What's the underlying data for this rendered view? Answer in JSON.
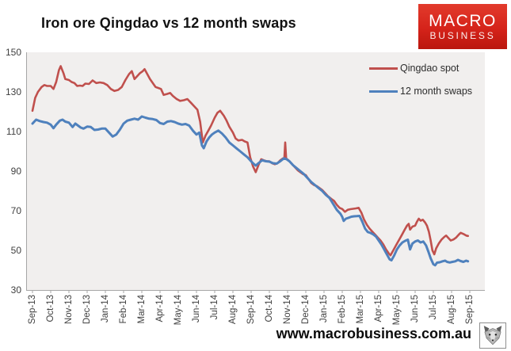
{
  "header": {
    "title": "Iron ore Qingdao vs 12 month swaps"
  },
  "logo": {
    "line1": "MACRO",
    "line2": "BUSINESS",
    "bg_color": "#d5231a",
    "text_color": "#ffffff"
  },
  "footer": {
    "url": "www.macrobusiness.com.au",
    "wolf_logo": "wolf-face-icon"
  },
  "chart_data": {
    "type": "line",
    "title": "Iron ore Qingdao vs 12 month swaps",
    "xlabel": "",
    "ylabel": "",
    "ylim": [
      30,
      150
    ],
    "y_ticks": [
      150,
      130,
      110,
      90,
      70,
      50,
      30
    ],
    "x_tick_labels": [
      "Sep-13",
      "Oct-13",
      "Nov-13",
      "Dec-13",
      "Jan-14",
      "Feb-14",
      "Mar-14",
      "Apr-14",
      "May-14",
      "Jun-14",
      "Jul-14",
      "Aug-14",
      "Sep-14",
      "Oct-14",
      "Nov-14",
      "Dec-14",
      "Jan-15",
      "Feb-15",
      "Mar-15",
      "Apr-15",
      "May-15",
      "Jun-15",
      "Jul-15",
      "Aug-15",
      "Sep-15"
    ],
    "x_unit": "months_since_Sep-13",
    "grid": false,
    "plot_background": "#f1efee",
    "axis_color": "#a6a6a6",
    "legend": {
      "position": "top-right",
      "entries": [
        {
          "name": "Qingdao spot",
          "color": "#c0504d"
        },
        {
          "name": "12 month swaps",
          "color": "#4f81bd"
        }
      ]
    },
    "series": [
      {
        "name": "Qingdao spot",
        "color": "#c0504d",
        "stroke_width": 2.6,
        "points": [
          [
            0,
            120.5
          ],
          [
            0.15,
            127
          ],
          [
            0.3,
            130
          ],
          [
            0.5,
            132.5
          ],
          [
            0.65,
            133.5
          ],
          [
            0.8,
            133
          ],
          [
            1,
            133
          ],
          [
            1.15,
            131.5
          ],
          [
            1.3,
            135
          ],
          [
            1.45,
            141
          ],
          [
            1.55,
            143
          ],
          [
            1.7,
            139.5
          ],
          [
            1.8,
            136.5
          ],
          [
            2,
            136
          ],
          [
            2.15,
            135
          ],
          [
            2.3,
            134.5
          ],
          [
            2.45,
            133
          ],
          [
            2.6,
            133.2
          ],
          [
            2.75,
            133
          ],
          [
            2.9,
            134.2
          ],
          [
            3.1,
            134
          ],
          [
            3.3,
            135.8
          ],
          [
            3.5,
            134.5
          ],
          [
            3.7,
            134.8
          ],
          [
            3.9,
            134.5
          ],
          [
            4.1,
            133.5
          ],
          [
            4.3,
            131.5
          ],
          [
            4.5,
            130.5
          ],
          [
            4.7,
            131
          ],
          [
            4.9,
            132.5
          ],
          [
            5.1,
            136
          ],
          [
            5.3,
            139
          ],
          [
            5.45,
            140.5
          ],
          [
            5.6,
            136.5
          ],
          [
            5.75,
            138
          ],
          [
            5.9,
            139.5
          ],
          [
            6.05,
            140.5
          ],
          [
            6.15,
            141.5
          ],
          [
            6.3,
            139
          ],
          [
            6.45,
            136.5
          ],
          [
            6.6,
            134.5
          ],
          [
            6.75,
            132.5
          ],
          [
            6.9,
            132
          ],
          [
            7.05,
            131.5
          ],
          [
            7.2,
            128.5
          ],
          [
            7.4,
            129
          ],
          [
            7.55,
            129.5
          ],
          [
            7.7,
            128
          ],
          [
            7.9,
            126.5
          ],
          [
            8.1,
            125.5
          ],
          [
            8.3,
            125.8
          ],
          [
            8.5,
            126.4
          ],
          [
            8.7,
            124.5
          ],
          [
            8.9,
            122.5
          ],
          [
            9.05,
            121
          ],
          [
            9.2,
            115
          ],
          [
            9.35,
            104.5
          ],
          [
            9.5,
            108
          ],
          [
            9.65,
            110.5
          ],
          [
            9.8,
            113
          ],
          [
            10,
            117
          ],
          [
            10.15,
            119.5
          ],
          [
            10.3,
            120.5
          ],
          [
            10.5,
            118
          ],
          [
            10.65,
            115.5
          ],
          [
            10.8,
            112.5
          ],
          [
            11,
            109.5
          ],
          [
            11.15,
            106.5
          ],
          [
            11.3,
            105.5
          ],
          [
            11.5,
            105.8
          ],
          [
            11.65,
            105
          ],
          [
            11.8,
            104.5
          ],
          [
            11.95,
            97
          ],
          [
            12.1,
            92.5
          ],
          [
            12.25,
            89.5
          ],
          [
            12.4,
            93
          ],
          [
            12.55,
            96
          ],
          [
            12.7,
            95.5
          ],
          [
            12.85,
            95
          ],
          [
            13,
            95
          ],
          [
            13.15,
            94
          ],
          [
            13.3,
            93.5
          ],
          [
            13.45,
            94
          ],
          [
            13.6,
            95.5
          ],
          [
            13.75,
            96.5
          ],
          [
            13.82,
            96.5
          ],
          [
            13.87,
            104.5
          ],
          [
            13.92,
            96.5
          ],
          [
            14.1,
            95
          ],
          [
            14.25,
            93.5
          ],
          [
            14.4,
            92
          ],
          [
            14.55,
            90.5
          ],
          [
            14.7,
            89.5
          ],
          [
            14.85,
            88.5
          ],
          [
            15,
            88
          ],
          [
            15.15,
            86
          ],
          [
            15.3,
            84
          ],
          [
            15.45,
            83
          ],
          [
            15.6,
            82.5
          ],
          [
            15.75,
            81.5
          ],
          [
            15.9,
            80.5
          ],
          [
            16.05,
            79
          ],
          [
            16.2,
            77.5
          ],
          [
            16.4,
            76
          ],
          [
            16.55,
            75
          ],
          [
            16.7,
            73
          ],
          [
            16.85,
            71.5
          ],
          [
            17,
            70.9
          ],
          [
            17.15,
            69.5
          ],
          [
            17.3,
            70.5
          ],
          [
            17.45,
            70.8
          ],
          [
            17.6,
            71
          ],
          [
            17.75,
            71.2
          ],
          [
            17.9,
            71.5
          ],
          [
            18.05,
            69
          ],
          [
            18.2,
            65.5
          ],
          [
            18.35,
            62.9
          ],
          [
            18.5,
            61
          ],
          [
            18.65,
            59.5
          ],
          [
            18.8,
            58
          ],
          [
            18.95,
            56.5
          ],
          [
            19.1,
            55
          ],
          [
            19.25,
            53
          ],
          [
            19.4,
            50.5
          ],
          [
            19.55,
            48.5
          ],
          [
            19.65,
            47.5
          ],
          [
            19.8,
            50
          ],
          [
            19.95,
            52.5
          ],
          [
            20.1,
            55
          ],
          [
            20.25,
            57.5
          ],
          [
            20.4,
            60
          ],
          [
            20.55,
            62.5
          ],
          [
            20.65,
            63.4
          ],
          [
            20.72,
            60.5
          ],
          [
            20.85,
            62
          ],
          [
            21,
            62.5
          ],
          [
            21.1,
            64.5
          ],
          [
            21.2,
            66
          ],
          [
            21.3,
            65
          ],
          [
            21.42,
            65.5
          ],
          [
            21.55,
            64
          ],
          [
            21.65,
            62.5
          ],
          [
            21.75,
            59.5
          ],
          [
            21.85,
            55
          ],
          [
            21.95,
            50
          ],
          [
            22.05,
            48
          ],
          [
            22.15,
            51
          ],
          [
            22.3,
            53.5
          ],
          [
            22.45,
            55.5
          ],
          [
            22.6,
            56.8
          ],
          [
            22.7,
            57.5
          ],
          [
            22.8,
            56.5
          ],
          [
            22.95,
            55
          ],
          [
            23.1,
            55.5
          ],
          [
            23.25,
            56.5
          ],
          [
            23.4,
            58
          ],
          [
            23.5,
            58.9
          ],
          [
            23.65,
            58.3
          ],
          [
            23.8,
            57.5
          ],
          [
            23.9,
            57.3
          ]
        ]
      },
      {
        "name": "12 month swaps",
        "color": "#4f81bd",
        "stroke_width": 3,
        "points": [
          [
            0,
            114
          ],
          [
            0.2,
            116
          ],
          [
            0.4,
            115.3
          ],
          [
            0.6,
            114.8
          ],
          [
            0.8,
            114.5
          ],
          [
            1,
            113.5
          ],
          [
            1.15,
            111.7
          ],
          [
            1.3,
            113.5
          ],
          [
            1.5,
            115.5
          ],
          [
            1.65,
            116
          ],
          [
            1.8,
            115
          ],
          [
            2,
            114.5
          ],
          [
            2.2,
            112.3
          ],
          [
            2.35,
            114
          ],
          [
            2.5,
            113
          ],
          [
            2.65,
            112
          ],
          [
            2.8,
            111.5
          ],
          [
            3,
            112.5
          ],
          [
            3.2,
            112.3
          ],
          [
            3.4,
            110.8
          ],
          [
            3.6,
            111
          ],
          [
            3.8,
            111.5
          ],
          [
            4,
            111.5
          ],
          [
            4.2,
            109.5
          ],
          [
            4.4,
            107.5
          ],
          [
            4.6,
            108.5
          ],
          [
            4.8,
            111
          ],
          [
            5,
            114
          ],
          [
            5.2,
            115.5
          ],
          [
            5.4,
            116
          ],
          [
            5.6,
            116.5
          ],
          [
            5.8,
            116
          ],
          [
            6,
            117.6
          ],
          [
            6.2,
            117
          ],
          [
            6.4,
            116.5
          ],
          [
            6.6,
            116.3
          ],
          [
            6.8,
            115.8
          ],
          [
            7,
            114.3
          ],
          [
            7.2,
            113.8
          ],
          [
            7.4,
            115
          ],
          [
            7.6,
            115.3
          ],
          [
            7.8,
            114.8
          ],
          [
            8,
            114
          ],
          [
            8.2,
            113.5
          ],
          [
            8.4,
            113.8
          ],
          [
            8.6,
            113
          ],
          [
            8.8,
            110.5
          ],
          [
            9,
            108.5
          ],
          [
            9.15,
            109.5
          ],
          [
            9.3,
            103
          ],
          [
            9.4,
            101.6
          ],
          [
            9.55,
            105
          ],
          [
            9.7,
            107
          ],
          [
            9.85,
            108.5
          ],
          [
            10,
            109.5
          ],
          [
            10.2,
            110.5
          ],
          [
            10.4,
            109
          ],
          [
            10.6,
            107
          ],
          [
            10.8,
            104.5
          ],
          [
            11,
            103
          ],
          [
            11.2,
            101.5
          ],
          [
            11.4,
            100
          ],
          [
            11.6,
            98.5
          ],
          [
            11.8,
            97
          ],
          [
            11.95,
            95.5
          ],
          [
            12.1,
            94
          ],
          [
            12.25,
            92.8
          ],
          [
            12.4,
            94
          ],
          [
            12.6,
            95.5
          ],
          [
            12.8,
            95
          ],
          [
            13,
            94.8
          ],
          [
            13.2,
            94
          ],
          [
            13.4,
            93.8
          ],
          [
            13.6,
            95
          ],
          [
            13.8,
            96.5
          ],
          [
            13.95,
            96
          ],
          [
            14.1,
            95
          ],
          [
            14.3,
            93
          ],
          [
            14.5,
            91.5
          ],
          [
            14.7,
            90
          ],
          [
            14.9,
            88.5
          ],
          [
            15.1,
            86.5
          ],
          [
            15.3,
            84.5
          ],
          [
            15.5,
            83
          ],
          [
            15.7,
            81.5
          ],
          [
            15.9,
            80
          ],
          [
            16.1,
            78
          ],
          [
            16.3,
            76.5
          ],
          [
            16.5,
            73.5
          ],
          [
            16.7,
            70.5
          ],
          [
            16.9,
            68.5
          ],
          [
            17,
            66.9
          ],
          [
            17.08,
            64.9
          ],
          [
            17.2,
            66
          ],
          [
            17.35,
            66.5
          ],
          [
            17.5,
            67
          ],
          [
            17.65,
            67.2
          ],
          [
            17.8,
            67.3
          ],
          [
            17.95,
            67.4
          ],
          [
            18.1,
            64.5
          ],
          [
            18.25,
            61
          ],
          [
            18.4,
            59.3
          ],
          [
            18.55,
            58.8
          ],
          [
            18.7,
            58.1
          ],
          [
            18.85,
            57
          ],
          [
            19,
            55
          ],
          [
            19.15,
            53
          ],
          [
            19.3,
            50.5
          ],
          [
            19.45,
            48
          ],
          [
            19.6,
            45.5
          ],
          [
            19.7,
            45
          ],
          [
            19.85,
            47.5
          ],
          [
            20,
            50.5
          ],
          [
            20.15,
            52.5
          ],
          [
            20.3,
            54
          ],
          [
            20.45,
            54.8
          ],
          [
            20.6,
            55.4
          ],
          [
            20.72,
            50.5
          ],
          [
            20.85,
            53.5
          ],
          [
            21,
            54.5
          ],
          [
            21.15,
            55
          ],
          [
            21.3,
            54
          ],
          [
            21.45,
            54.5
          ],
          [
            21.6,
            52.5
          ],
          [
            21.72,
            49.5
          ],
          [
            21.85,
            46
          ],
          [
            22,
            43
          ],
          [
            22.1,
            42.5
          ],
          [
            22.2,
            43.8
          ],
          [
            22.35,
            44
          ],
          [
            22.5,
            44.5
          ],
          [
            22.65,
            44.8
          ],
          [
            22.75,
            44.2
          ],
          [
            22.9,
            43.9
          ],
          [
            23.05,
            44.2
          ],
          [
            23.2,
            44.5
          ],
          [
            23.35,
            45.2
          ],
          [
            23.5,
            44.6
          ],
          [
            23.65,
            44.2
          ],
          [
            23.8,
            44.8
          ],
          [
            23.9,
            44.5
          ]
        ]
      }
    ]
  }
}
